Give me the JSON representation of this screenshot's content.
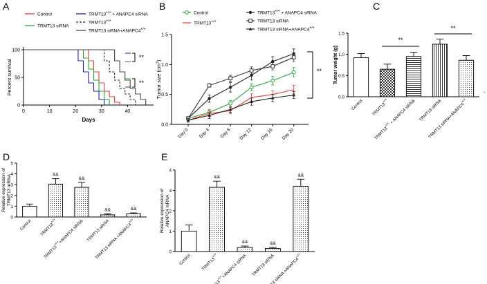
{
  "chart_data": [
    {
      "panel": "A",
      "type": "line",
      "subtype": "kaplan-meier",
      "xlabel": "Days",
      "ylabel": "Percent survival",
      "xlim": [
        0,
        50
      ],
      "ylim": [
        0,
        100
      ],
      "xticks": [
        0,
        10,
        20,
        30,
        40
      ],
      "yticks": [
        0,
        50,
        100
      ],
      "series": [
        {
          "name": "Control",
          "label": "Control",
          "color": "#e53935",
          "dash": false,
          "x": [
            0,
            25,
            27,
            29,
            31,
            33,
            35,
            37
          ],
          "y": [
            100,
            80,
            60,
            40,
            25,
            15,
            5,
            0
          ]
        },
        {
          "name": "TRMT13 siRNA",
          "label": "TRMT13 siRNA",
          "color": "#2e9e3e",
          "dash": false,
          "x": [
            0,
            23,
            25,
            27,
            29,
            31,
            33
          ],
          "y": [
            100,
            85,
            65,
            45,
            25,
            10,
            0
          ]
        },
        {
          "name": "TRMT13 +/+ + ANAPC4 siRNA",
          "label_main": "TRMT13",
          "label_sup": "+/+",
          "label_tail": " + ANAPC4 siRNA",
          "color": "#1c1ca8",
          "dash": false,
          "x": [
            0,
            21,
            23,
            25,
            27,
            29,
            31
          ],
          "y": [
            100,
            80,
            60,
            40,
            25,
            10,
            0
          ]
        },
        {
          "name": "TRMT13 +/+",
          "label_main": "TRMT13",
          "label_sup": "+/+",
          "label_tail": "",
          "color": "#222222",
          "dash": true,
          "x": [
            0,
            31,
            33,
            35,
            37,
            39,
            41,
            43
          ],
          "y": [
            100,
            80,
            60,
            45,
            30,
            20,
            10,
            0
          ]
        },
        {
          "name": "TRMT13 siRNA+ANAPC4 +/+",
          "label_main": "TRMT13 siRNA+ANAPC4",
          "label_sup": "+/+",
          "label_tail": "",
          "color": "#444444",
          "dash": false,
          "x": [
            0,
            35,
            37,
            39,
            41,
            43,
            45,
            47
          ],
          "y": [
            100,
            80,
            60,
            45,
            30,
            20,
            10,
            0
          ]
        }
      ],
      "annotations": [
        "**",
        "**"
      ]
    },
    {
      "panel": "B",
      "type": "line",
      "xlabel": "",
      "ylabel": "Tumor size (cm",
      "ylabel_sup": "3",
      "ylabel_tail": ")",
      "categories": [
        "Day 0",
        "Day 4",
        "Day 8",
        "Day 12",
        "Day 16",
        "Day 20"
      ],
      "ylim": [
        0,
        1.5
      ],
      "yticks": [
        "0.0",
        "0.5",
        "1.0",
        "1.5"
      ],
      "series": [
        {
          "name": "Control",
          "label": "Control",
          "color": "#2e9e3e",
          "marker": "circle-open",
          "values": [
            0.1,
            0.2,
            0.35,
            0.62,
            0.73,
            0.87
          ],
          "err": [
            0.03,
            0.05,
            0.05,
            0.06,
            0.07,
            0.08
          ]
        },
        {
          "name": "TRMT13 +/+",
          "label_main": "TRMT13",
          "label_sup": "+/+",
          "label_tail": "",
          "color": "#e53935",
          "marker": "none",
          "values": [
            0.07,
            0.18,
            0.23,
            0.45,
            0.5,
            0.58
          ],
          "err": [
            0.03,
            0.05,
            0.05,
            0.06,
            0.06,
            0.07
          ]
        },
        {
          "name": "TRMT13 +/+ + ANAPC4 siRNA",
          "label_main": "TRMT13",
          "label_sup": "+/+",
          "label_tail": " + ANAPC4 siRNA",
          "color": "#222222",
          "marker": "circle",
          "values": [
            0.1,
            0.43,
            0.62,
            0.82,
            1.05,
            1.18
          ],
          "err": [
            0.03,
            0.06,
            0.08,
            0.08,
            0.08,
            0.08
          ]
        },
        {
          "name": "TRMT13 siRNA",
          "label": "TRMT13 siRNA",
          "color": "#333333",
          "marker": "square-open",
          "values": [
            0.1,
            0.65,
            0.77,
            0.9,
            0.97,
            1.12
          ],
          "err": [
            0.03,
            0.03,
            0.05,
            0.06,
            0.06,
            0.07
          ]
        },
        {
          "name": "TRMT13 siRNA+ANAPC4 +/+",
          "label_main": "TRMT13 siRNA+ANAPC4",
          "label_sup": "+/+",
          "label_tail": "",
          "color": "#222222",
          "marker": "triangle",
          "values": [
            0.07,
            0.15,
            0.25,
            0.38,
            0.44,
            0.49
          ],
          "err": [
            0.03,
            0.05,
            0.05,
            0.06,
            0.06,
            0.06
          ]
        }
      ],
      "annotations": [
        "**"
      ]
    },
    {
      "panel": "C",
      "type": "bar",
      "ylabel": "Tumor weight (g)",
      "ylim": [
        0,
        1.5
      ],
      "yticks": [
        "0.0",
        "0.5",
        "1.0",
        "1.5"
      ],
      "categories": [
        {
          "main": "Control",
          "sup": "",
          "tail": ""
        },
        {
          "main": "TRMT13",
          "sup": "+/+",
          "tail": ""
        },
        {
          "main": "TRMT13",
          "sup": "+/+",
          "tail": " + ANAPC4 siRNA"
        },
        {
          "main": "TRMT13 siRNA",
          "sup": "",
          "tail": ""
        },
        {
          "main": "TRMT13 siRNA+ANAPC4",
          "sup": "+/+",
          "tail": ""
        }
      ],
      "values": [
        0.92,
        0.65,
        0.95,
        1.24,
        0.86
      ],
      "err": [
        0.1,
        0.12,
        0.1,
        0.12,
        0.11
      ],
      "patterns": [
        "plain",
        "check",
        "hlines",
        "vlines",
        "dots"
      ],
      "annotations": [
        "**",
        "**"
      ],
      "extra_mark": "-"
    },
    {
      "panel": "D",
      "type": "bar",
      "ylabel_line1": "Relative expression of",
      "ylabel_line2": "TRMT13 mRNA",
      "ylim": [
        0,
        5
      ],
      "yticks": [
        "0",
        "1",
        "2",
        "3",
        "4",
        "5"
      ],
      "categories": [
        {
          "main": "Control",
          "sup": "",
          "tail": ""
        },
        {
          "main": "TRMT13",
          "sup": "+/+",
          "tail": ""
        },
        {
          "main": "TRMT13",
          "sup": "+/+",
          "tail": "+ANAPC4 siRNA"
        },
        {
          "main": "TRMT13 siRNA",
          "sup": "",
          "tail": ""
        },
        {
          "main": "TRMT13 siRNA +ANAPC4",
          "sup": "+/+",
          "tail": ""
        }
      ],
      "values": [
        1.0,
        3.05,
        2.75,
        0.2,
        0.3
      ],
      "err": [
        0.2,
        0.5,
        0.45,
        0.08,
        0.08
      ],
      "patterns": [
        "plain",
        "dots",
        "dots",
        "dots",
        "dots"
      ],
      "annotations": [
        "",
        "&&",
        "&&",
        "&&",
        "&&"
      ]
    },
    {
      "panel": "E",
      "type": "bar",
      "ylabel_line1": "Relative expression of",
      "ylabel_line2": "ANAPC4 mRNA",
      "ylim": [
        0,
        4
      ],
      "yticks": [
        "0",
        "1",
        "2",
        "3",
        "4"
      ],
      "categories": [
        {
          "main": "Control",
          "sup": "",
          "tail": ""
        },
        {
          "main": "TRMT13",
          "sup": "+/+",
          "tail": ""
        },
        {
          "main": "TRMT13",
          "sup": "+/+",
          "tail": "+ANAPC4 siRNA"
        },
        {
          "main": "TRMT13 siRNA",
          "sup": "",
          "tail": ""
        },
        {
          "main": "TRMT13 siRNA +ANAPC4",
          "sup": "+/+",
          "tail": ""
        }
      ],
      "values": [
        1.0,
        3.15,
        0.2,
        0.15,
        3.2
      ],
      "err": [
        0.3,
        0.3,
        0.07,
        0.05,
        0.35
      ],
      "patterns": [
        "plain",
        "dots",
        "dots",
        "dots",
        "dots"
      ],
      "annotations": [
        "",
        "&&",
        "&&",
        "&&",
        "&&"
      ]
    }
  ]
}
